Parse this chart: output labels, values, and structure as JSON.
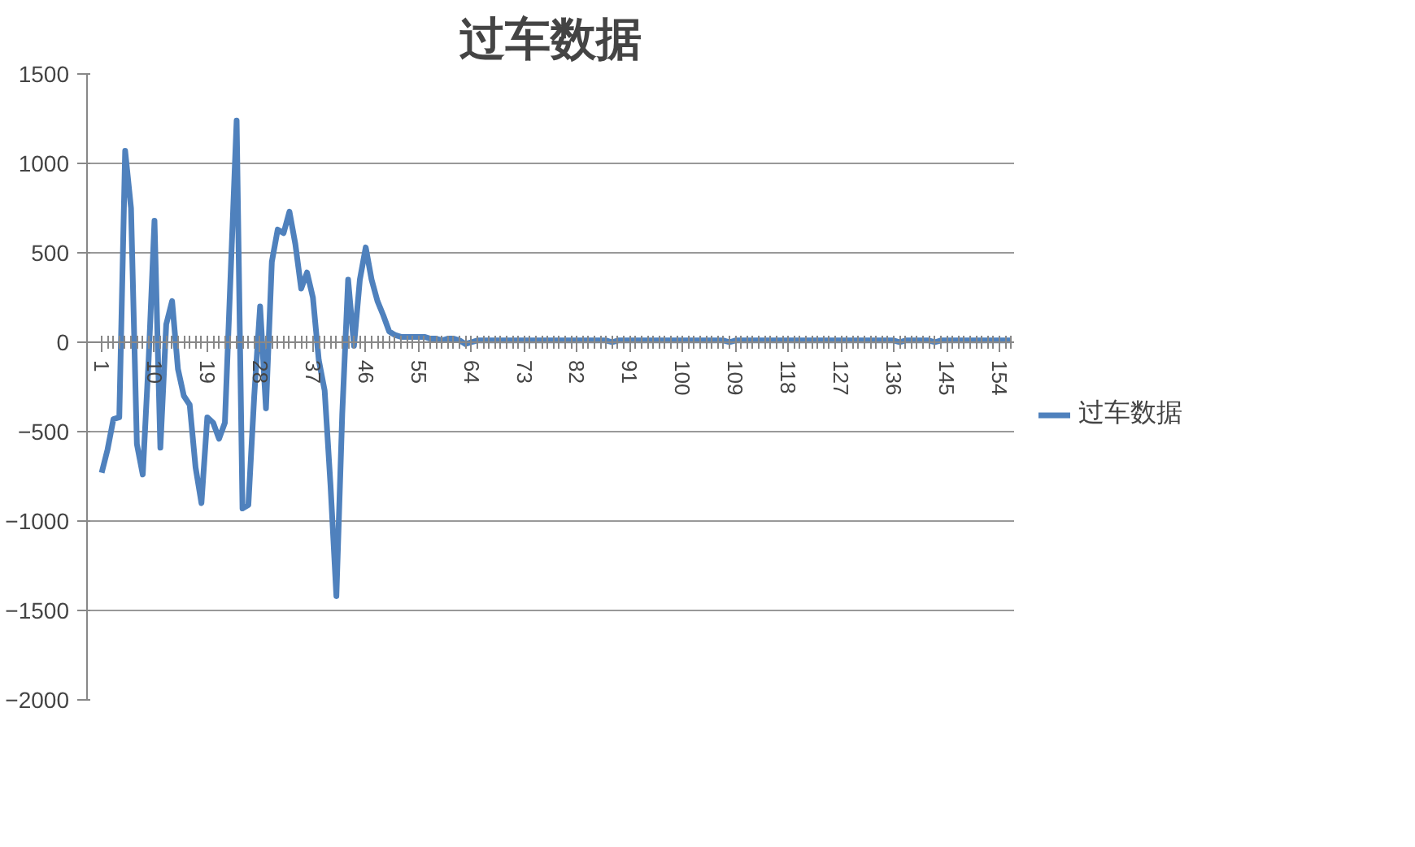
{
  "chart_data": {
    "type": "line",
    "title": "过车数据",
    "categories": [
      "1",
      null,
      null,
      null,
      null,
      null,
      null,
      null,
      null,
      "10",
      null,
      null,
      null,
      null,
      null,
      null,
      null,
      null,
      "19",
      null,
      null,
      null,
      null,
      null,
      null,
      null,
      null,
      "28",
      null,
      null,
      null,
      null,
      null,
      null,
      null,
      null,
      "37",
      null,
      null,
      null,
      null,
      null,
      null,
      null,
      null,
      "46",
      null,
      null,
      null,
      null,
      null,
      null,
      null,
      null,
      "55",
      null,
      null,
      null,
      null,
      null,
      null,
      null,
      null,
      "64",
      null,
      null,
      null,
      null,
      null,
      null,
      null,
      null,
      "73",
      null,
      null,
      null,
      null,
      null,
      null,
      null,
      null,
      "82",
      null,
      null,
      null,
      null,
      null,
      null,
      null,
      null,
      "91",
      null,
      null,
      null,
      null,
      null,
      null,
      null,
      null,
      "100",
      null,
      null,
      null,
      null,
      null,
      null,
      null,
      null,
      "109",
      null,
      null,
      null,
      null,
      null,
      null,
      null,
      null,
      "118",
      null,
      null,
      null,
      null,
      null,
      null,
      null,
      null,
      "127",
      null,
      null,
      null,
      null,
      null,
      null,
      null,
      null,
      "136",
      null,
      null,
      null,
      null,
      null,
      null,
      null,
      null,
      "145",
      null,
      null,
      null,
      null,
      null,
      null,
      null,
      null,
      "154",
      null,
      null
    ],
    "series": [
      {
        "name": "过车数据",
        "color": "#4f81bd",
        "values": [
          -730,
          -600,
          -430,
          -420,
          1070,
          750,
          -570,
          -740,
          -100,
          680,
          -590,
          100,
          230,
          -150,
          -300,
          -350,
          -700,
          -900,
          -420,
          -450,
          -540,
          -450,
          400,
          1240,
          -930,
          -910,
          -300,
          200,
          -370,
          450,
          630,
          610,
          730,
          550,
          300,
          390,
          250,
          -100,
          -270,
          -800,
          -1420,
          -400,
          350,
          -20,
          350,
          530,
          350,
          230,
          150,
          60,
          40,
          30,
          30,
          30,
          30,
          30,
          20,
          20,
          10,
          20,
          20,
          10,
          -10,
          0,
          10,
          10,
          10,
          10,
          10,
          10,
          10,
          10,
          10,
          10,
          10,
          10,
          10,
          10,
          10,
          10,
          10,
          10,
          10,
          10,
          10,
          10,
          10,
          0,
          10,
          10,
          10,
          10,
          10,
          10,
          10,
          10,
          10,
          10,
          10,
          10,
          10,
          10,
          10,
          10,
          10,
          10,
          10,
          0,
          10,
          10,
          10,
          10,
          10,
          10,
          10,
          10,
          10,
          10,
          10,
          10,
          10,
          10,
          10,
          10,
          10,
          10,
          10,
          10,
          10,
          10,
          10,
          10,
          10,
          10,
          10,
          10,
          0,
          10,
          10,
          10,
          10,
          10,
          0,
          10,
          10,
          10,
          10,
          10,
          10,
          10,
          10,
          10,
          10,
          10,
          10,
          10
        ]
      }
    ],
    "ylim": [
      -2000,
      1500
    ],
    "yticks": [
      -2000,
      -1500,
      -1000,
      -500,
      0,
      500,
      1000,
      1500
    ],
    "grid": "y",
    "legend": "right",
    "line_style": "solid",
    "marker": "none"
  }
}
